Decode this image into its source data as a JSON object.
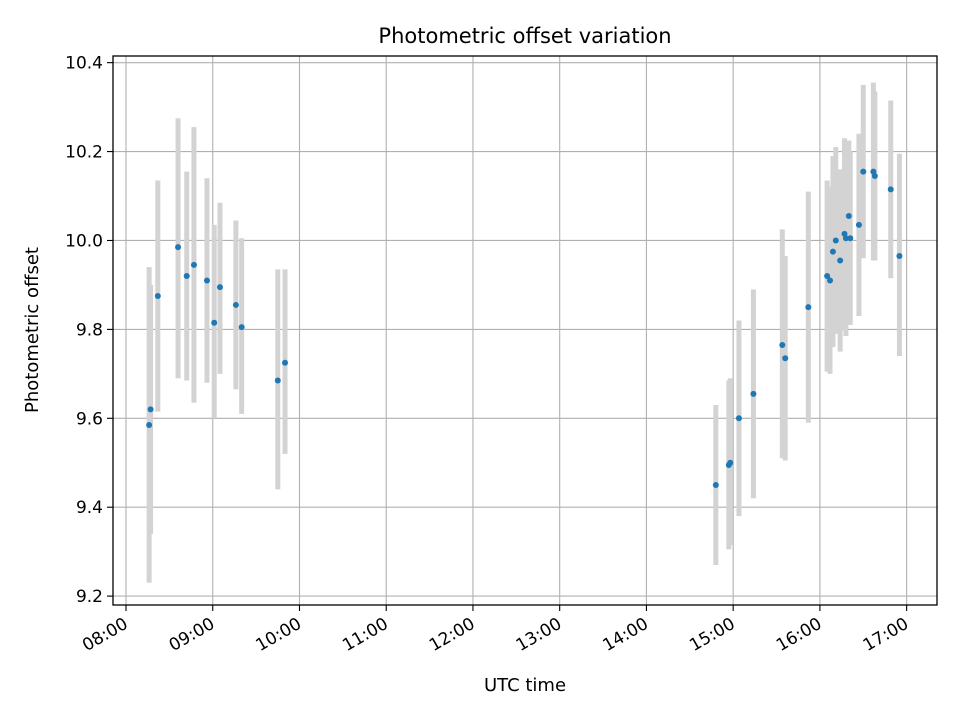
{
  "chart_data": {
    "type": "scatter",
    "title": "Photometric offset variation",
    "xlabel": "UTC time",
    "ylabel": "Photometric offset",
    "x_tick_labels": [
      "08:00",
      "09:00",
      "10:00",
      "11:00",
      "12:00",
      "13:00",
      "14:00",
      "15:00",
      "16:00",
      "17:00"
    ],
    "y_tick_labels": [
      "9.2",
      "9.4",
      "9.6",
      "9.8",
      "10.0",
      "10.2",
      "10.4"
    ],
    "x_ticks_hours": [
      8,
      9,
      10,
      11,
      12,
      13,
      14,
      15,
      16,
      17
    ],
    "y_ticks": [
      9.2,
      9.4,
      9.6,
      9.8,
      10.0,
      10.2,
      10.4
    ],
    "xlim_hours": [
      7.85,
      17.35
    ],
    "ylim": [
      9.18,
      10.415
    ],
    "grid": true,
    "error_bar_color": "#d3d3d3",
    "point_color": "#1f77b4",
    "points": [
      {
        "time": "08:16",
        "y": 9.585,
        "yerr_low": 9.23,
        "yerr_high": 9.94
      },
      {
        "time": "08:17",
        "y": 9.62,
        "yerr_low": 9.34,
        "yerr_high": 9.9
      },
      {
        "time": "08:22",
        "y": 9.875,
        "yerr_low": 9.615,
        "yerr_high": 10.135
      },
      {
        "time": "08:36",
        "y": 9.985,
        "yerr_low": 9.69,
        "yerr_high": 10.275
      },
      {
        "time": "08:42",
        "y": 9.92,
        "yerr_low": 9.685,
        "yerr_high": 10.155
      },
      {
        "time": "08:47",
        "y": 9.945,
        "yerr_low": 9.635,
        "yerr_high": 10.255
      },
      {
        "time": "08:56",
        "y": 9.91,
        "yerr_low": 9.68,
        "yerr_high": 10.14
      },
      {
        "time": "09:01",
        "y": 9.815,
        "yerr_low": 9.6,
        "yerr_high": 10.035
      },
      {
        "time": "09:05",
        "y": 9.895,
        "yerr_low": 9.7,
        "yerr_high": 10.085
      },
      {
        "time": "09:16",
        "y": 9.855,
        "yerr_low": 9.665,
        "yerr_high": 10.045
      },
      {
        "time": "09:20",
        "y": 9.805,
        "yerr_low": 9.61,
        "yerr_high": 10.005
      },
      {
        "time": "09:45",
        "y": 9.685,
        "yerr_low": 9.44,
        "yerr_high": 9.935
      },
      {
        "time": "09:50",
        "y": 9.725,
        "yerr_low": 9.52,
        "yerr_high": 9.935
      },
      {
        "time": "14:48",
        "y": 9.45,
        "yerr_low": 9.27,
        "yerr_high": 9.63
      },
      {
        "time": "14:57",
        "y": 9.495,
        "yerr_low": 9.305,
        "yerr_high": 9.685
      },
      {
        "time": "14:58",
        "y": 9.5,
        "yerr_low": 9.315,
        "yerr_high": 9.69
      },
      {
        "time": "15:04",
        "y": 9.6,
        "yerr_low": 9.38,
        "yerr_high": 9.82
      },
      {
        "time": "15:14",
        "y": 9.655,
        "yerr_low": 9.42,
        "yerr_high": 9.89
      },
      {
        "time": "15:34",
        "y": 9.765,
        "yerr_low": 9.51,
        "yerr_high": 10.025
      },
      {
        "time": "15:36",
        "y": 9.735,
        "yerr_low": 9.505,
        "yerr_high": 9.965
      },
      {
        "time": "15:52",
        "y": 9.85,
        "yerr_low": 9.59,
        "yerr_high": 10.11
      },
      {
        "time": "16:05",
        "y": 9.92,
        "yerr_low": 9.705,
        "yerr_high": 10.135
      },
      {
        "time": "16:07",
        "y": 9.91,
        "yerr_low": 9.7,
        "yerr_high": 10.12
      },
      {
        "time": "16:09",
        "y": 9.975,
        "yerr_low": 9.76,
        "yerr_high": 10.19
      },
      {
        "time": "16:11",
        "y": 10.0,
        "yerr_low": 9.79,
        "yerr_high": 10.21
      },
      {
        "time": "16:14",
        "y": 9.955,
        "yerr_low": 9.75,
        "yerr_high": 10.16
      },
      {
        "time": "16:17",
        "y": 10.015,
        "yerr_low": 9.8,
        "yerr_high": 10.23
      },
      {
        "time": "16:18",
        "y": 10.005,
        "yerr_low": 9.785,
        "yerr_high": 10.225
      },
      {
        "time": "16:20",
        "y": 10.055,
        "yerr_low": 9.845,
        "yerr_high": 10.225
      },
      {
        "time": "16:21",
        "y": 10.005,
        "yerr_low": 9.81,
        "yerr_high": 10.2
      },
      {
        "time": "16:27",
        "y": 10.035,
        "yerr_low": 9.83,
        "yerr_high": 10.24
      },
      {
        "time": "16:30",
        "y": 10.155,
        "yerr_low": 9.96,
        "yerr_high": 10.35
      },
      {
        "time": "16:37",
        "y": 10.155,
        "yerr_low": 9.955,
        "yerr_high": 10.355
      },
      {
        "time": "16:38",
        "y": 10.145,
        "yerr_low": 9.955,
        "yerr_high": 10.335
      },
      {
        "time": "16:49",
        "y": 10.115,
        "yerr_low": 9.915,
        "yerr_high": 10.315
      },
      {
        "time": "16:55",
        "y": 9.965,
        "yerr_low": 9.74,
        "yerr_high": 10.195
      }
    ]
  }
}
